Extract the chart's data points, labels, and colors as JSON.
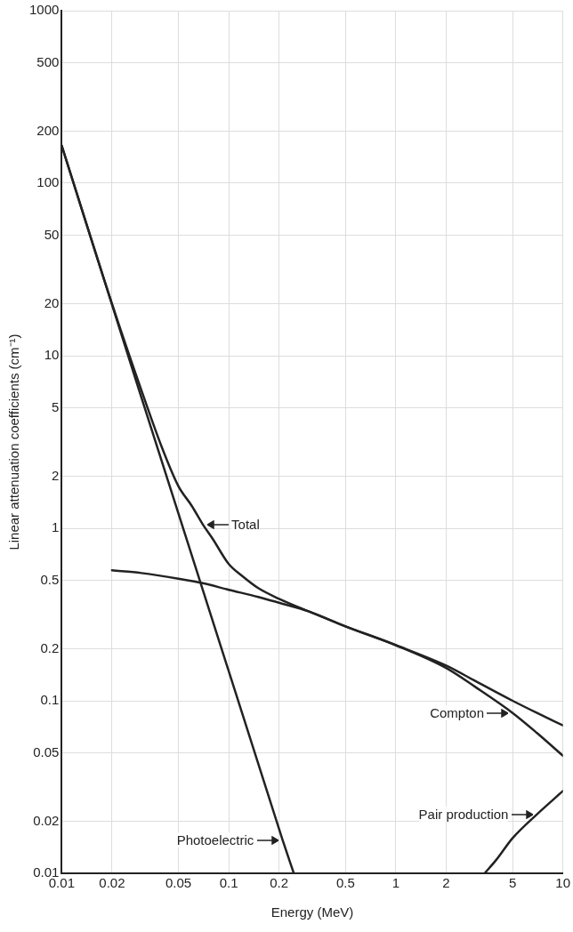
{
  "chart_data": {
    "type": "line",
    "xlabel": "Energy (MeV)",
    "ylabel": "Linear attenuation coefficients (cm⁻¹)",
    "log": "xy",
    "grid": true,
    "marker": "none",
    "line_style": "solid",
    "xlim": [
      0.01,
      10
    ],
    "ylim": [
      0.01,
      1000
    ],
    "xticks": [
      0.01,
      0.02,
      0.05,
      0.1,
      0.2,
      0.5,
      1,
      2,
      5,
      10
    ],
    "yticks": [
      0.01,
      0.02,
      0.05,
      0.1,
      0.2,
      0.5,
      1,
      2,
      5,
      10,
      20,
      50,
      100,
      200,
      500,
      1000
    ],
    "series": [
      {
        "color": "#222222",
        "x": [
          0.01,
          0.02,
          0.03,
          0.04,
          0.05,
          0.06,
          0.07,
          0.08,
          0.1,
          0.12,
          0.15,
          0.2,
          0.3,
          0.5,
          1,
          2,
          3,
          5,
          7,
          10
        ],
        "values": [
          165,
          20,
          6.3,
          2.9,
          1.75,
          1.35,
          1.05,
          0.87,
          0.62,
          0.53,
          0.45,
          0.39,
          0.33,
          0.27,
          0.21,
          0.16,
          0.13,
          0.1,
          0.085,
          0.072
        ]
      },
      {
        "color": "#222222",
        "x": [
          0.02,
          0.03,
          0.05,
          0.07,
          0.1,
          0.15,
          0.2,
          0.3,
          0.5,
          1,
          2,
          3,
          5,
          7,
          10
        ],
        "values": [
          0.57,
          0.55,
          0.51,
          0.48,
          0.44,
          0.4,
          0.37,
          0.33,
          0.27,
          0.21,
          0.155,
          0.12,
          0.085,
          0.065,
          0.048
        ]
      },
      {
        "color": "#222222",
        "x": [
          0.01,
          0.21,
          0.245
        ],
        "values": [
          165,
          0.0156,
          0.01
        ]
      },
      {
        "color": "#222222",
        "x": [
          3.4,
          4,
          5,
          7,
          10
        ],
        "values": [
          0.01,
          0.012,
          0.016,
          0.022,
          0.03
        ]
      }
    ],
    "annotations": [
      {
        "text": "Total",
        "x": 0.07,
        "y": 1.05
      },
      {
        "text": "Compton",
        "x": 5,
        "y": 0.085
      },
      {
        "text": "Pair production",
        "x": 7,
        "y": 0.022
      },
      {
        "text": "Photoelectric",
        "x": 0.21,
        "y": 0.0156
      }
    ]
  }
}
